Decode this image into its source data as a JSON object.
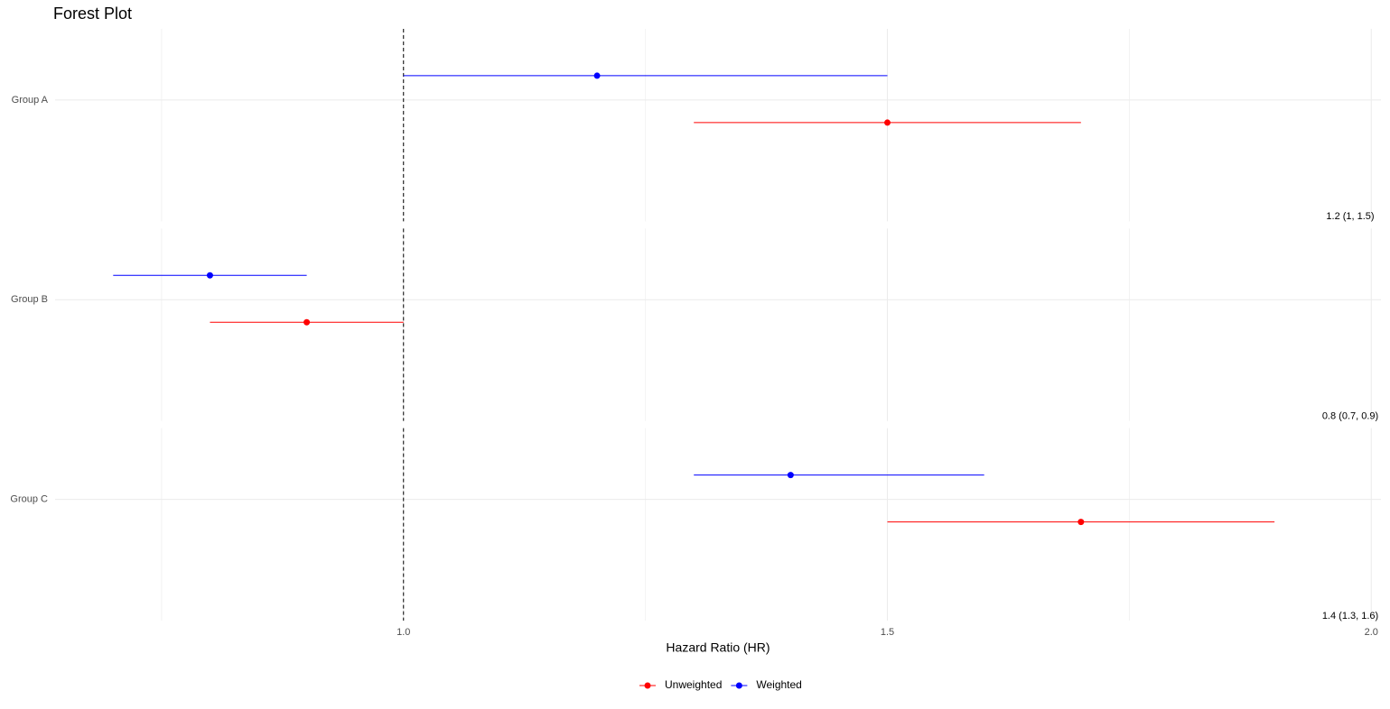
{
  "chart_data": {
    "type": "forest",
    "title": "Forest Plot",
    "x_label": "Hazard Ratio (HR)",
    "categories": [
      "Group A",
      "Group B",
      "Group C"
    ],
    "series": [
      {
        "name": "Unweighted",
        "color": "#ff0000",
        "values": [
          1.5,
          0.9,
          1.7
        ],
        "lower": [
          1.3,
          0.8,
          1.5
        ],
        "upper": [
          1.7,
          1.0,
          1.9
        ]
      },
      {
        "name": "Weighted",
        "color": "#0000ff",
        "values": [
          1.2,
          0.8,
          1.4
        ],
        "lower": [
          1.0,
          0.7,
          1.3
        ],
        "upper": [
          1.5,
          0.9,
          1.6
        ]
      }
    ],
    "annotations": [
      "1.2 (1, 1.5)",
      "0.8 (0.7, 0.9)",
      "1.4 (1.3, 1.6)"
    ],
    "xlim": [
      0.64,
      2.01
    ],
    "xticks": [
      {
        "value": 1,
        "label": "1.0"
      },
      1.5,
      {
        "value": 2,
        "label": "2.0"
      }
    ],
    "x_minor_grid": [
      0.75,
      1.25,
      1.75
    ],
    "reference_line": 1,
    "grid": true,
    "legend": "bottom"
  }
}
